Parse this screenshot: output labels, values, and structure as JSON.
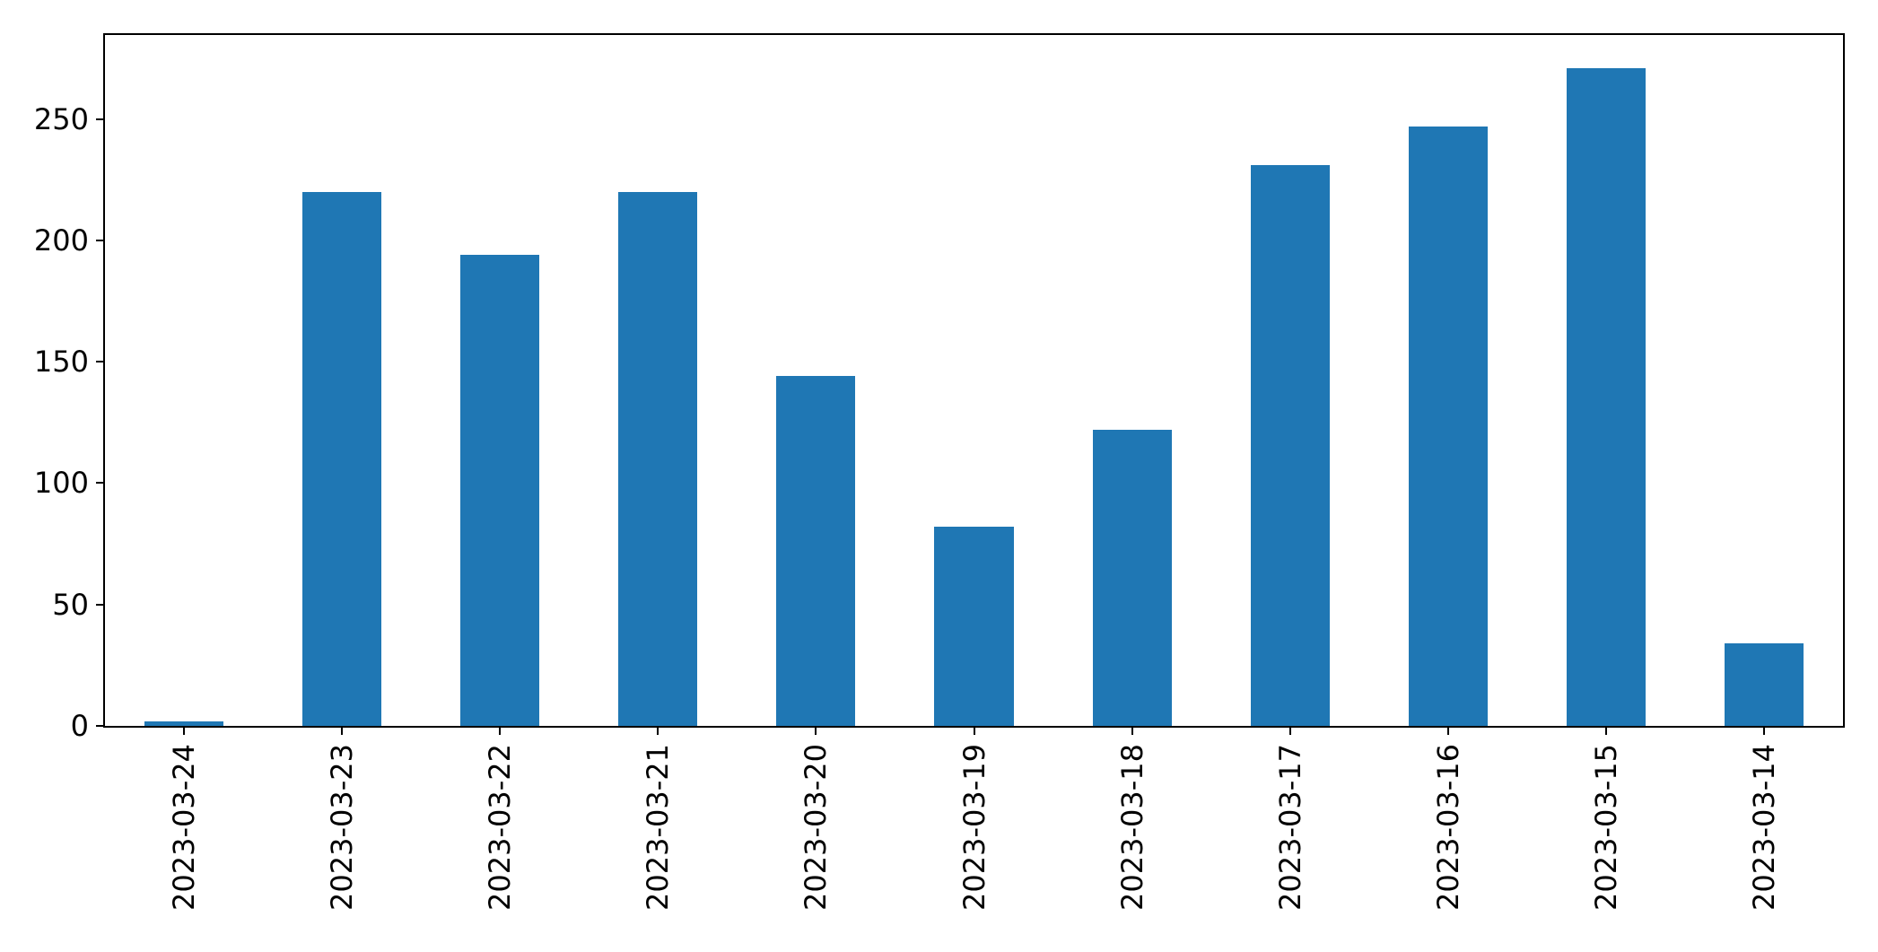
{
  "figure": {
    "background": "#ffffff",
    "spine_color": "#000000",
    "tick_color": "#000000",
    "tick_label_color": "#000000"
  },
  "chart_data": {
    "type": "bar",
    "title": "",
    "xlabel": "",
    "ylabel": "",
    "categories": [
      "2023-03-24",
      "2023-03-23",
      "2023-03-22",
      "2023-03-21",
      "2023-03-20",
      "2023-03-19",
      "2023-03-18",
      "2023-03-17",
      "2023-03-16",
      "2023-03-15",
      "2023-03-14"
    ],
    "values": [
      2,
      220,
      194,
      220,
      144,
      82,
      122,
      231,
      247,
      271,
      34
    ],
    "bar_color": "#1f77b4",
    "bar_width_fraction": 0.5,
    "ylim": [
      0,
      284.6
    ],
    "yticks": [
      0,
      50,
      100,
      150,
      200,
      250
    ],
    "x_tick_rotation_deg": 90,
    "grid": false,
    "legend": false
  }
}
